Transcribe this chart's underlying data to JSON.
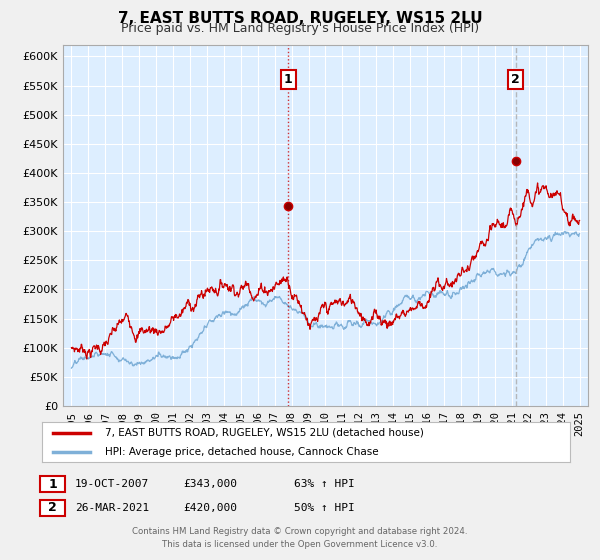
{
  "title": "7, EAST BUTTS ROAD, RUGELEY, WS15 2LU",
  "subtitle": "Price paid vs. HM Land Registry's House Price Index (HPI)",
  "red_label": "7, EAST BUTTS ROAD, RUGELEY, WS15 2LU (detached house)",
  "blue_label": "HPI: Average price, detached house, Cannock Chase",
  "annotation1_date": "19-OCT-2007",
  "annotation1_price": "£343,000",
  "annotation1_hpi": "63% ↑ HPI",
  "annotation1_year": 2007.8,
  "annotation1_value": 343000,
  "annotation2_date": "26-MAR-2021",
  "annotation2_price": "£420,000",
  "annotation2_hpi": "50% ↑ HPI",
  "annotation2_year": 2021.23,
  "annotation2_value": 420000,
  "footer_line1": "Contains HM Land Registry data © Crown copyright and database right 2024.",
  "footer_line2": "This data is licensed under the Open Government Licence v3.0.",
  "xlim_min": 1994.5,
  "xlim_max": 2025.5,
  "ylim_min": 0,
  "ylim_max": 620000,
  "yticks": [
    0,
    50000,
    100000,
    150000,
    200000,
    250000,
    300000,
    350000,
    400000,
    450000,
    500000,
    550000,
    600000
  ],
  "ytick_labels": [
    "£0",
    "£50K",
    "£100K",
    "£150K",
    "£200K",
    "£250K",
    "£300K",
    "£350K",
    "£400K",
    "£450K",
    "£500K",
    "£550K",
    "£600K"
  ],
  "red_color": "#cc0000",
  "blue_color": "#7fb0d8",
  "vline1_color": "#cc0000",
  "vline2_color": "#aaaaaa",
  "bg_color": "#f0f0f0",
  "plot_bg_color": "#ddeeff",
  "grid_color": "#ffffff"
}
